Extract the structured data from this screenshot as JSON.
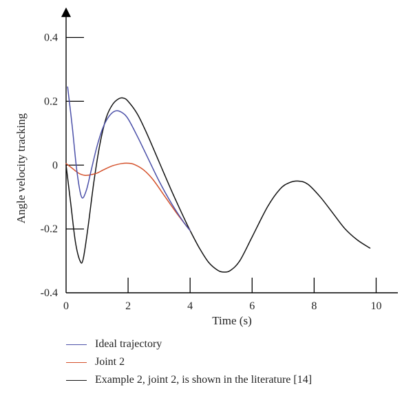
{
  "chart_data": {
    "type": "line",
    "xlabel": "Time (s)",
    "ylabel": "Angle velocity tracking",
    "xlim": [
      0,
      10.7
    ],
    "ylim": [
      -0.4,
      0.47
    ],
    "xticks": [
      0,
      2,
      4,
      6,
      8,
      10
    ],
    "xtick_labels": [
      "0",
      "2",
      "4",
      "6",
      "8",
      "10"
    ],
    "yticks": [
      0.4,
      0.2,
      0,
      -0.2,
      -0.4
    ],
    "ytick_labels": [
      "0.4",
      "0.2",
      "0",
      "-0.2",
      "-0.4"
    ],
    "grid": false,
    "legend_position": "bottom",
    "series": [
      {
        "name": "Ideal trajectory",
        "color": "#4a4fa8",
        "x": [
          0.05,
          0.2,
          0.35,
          0.5,
          0.65,
          0.8,
          1.0,
          1.2,
          1.4,
          1.6,
          1.8,
          2.0,
          2.3,
          2.6,
          3.0,
          3.4,
          3.8,
          4.0
        ],
        "y": [
          0.245,
          0.12,
          -0.02,
          -0.1,
          -0.08,
          -0.02,
          0.06,
          0.12,
          0.155,
          0.17,
          0.165,
          0.145,
          0.09,
          0.03,
          -0.05,
          -0.12,
          -0.18,
          -0.205
        ]
      },
      {
        "name": "Joint 2",
        "color": "#d4502a",
        "x": [
          0.0,
          0.2,
          0.4,
          0.6,
          0.8,
          1.0,
          1.2,
          1.5,
          1.8,
          2.0,
          2.2,
          2.5,
          2.8,
          3.2,
          3.6,
          4.0
        ],
        "y": [
          0.005,
          -0.01,
          -0.025,
          -0.032,
          -0.03,
          -0.025,
          -0.015,
          -0.002,
          0.005,
          0.006,
          0.002,
          -0.015,
          -0.045,
          -0.1,
          -0.155,
          -0.205
        ]
      },
      {
        "name": "Example 2, joint 2, is shown in the literature [14]",
        "color": "#111111",
        "x": [
          0.0,
          0.15,
          0.3,
          0.45,
          0.55,
          0.7,
          0.9,
          1.1,
          1.3,
          1.5,
          1.7,
          1.85,
          2.0,
          2.3,
          2.6,
          3.0,
          3.4,
          3.8,
          4.0,
          4.3,
          4.6,
          4.9,
          5.1,
          5.3,
          5.6,
          6.0,
          6.5,
          6.9,
          7.2,
          7.5,
          7.8,
          8.2,
          8.6,
          9.0,
          9.4,
          9.8
        ],
        "y": [
          0.0,
          -0.12,
          -0.24,
          -0.3,
          -0.295,
          -0.2,
          -0.05,
          0.07,
          0.15,
          0.19,
          0.208,
          0.21,
          0.2,
          0.16,
          0.1,
          0.01,
          -0.08,
          -0.165,
          -0.205,
          -0.26,
          -0.305,
          -0.33,
          -0.335,
          -0.33,
          -0.3,
          -0.225,
          -0.13,
          -0.075,
          -0.055,
          -0.05,
          -0.06,
          -0.1,
          -0.15,
          -0.2,
          -0.235,
          -0.26
        ]
      }
    ]
  }
}
